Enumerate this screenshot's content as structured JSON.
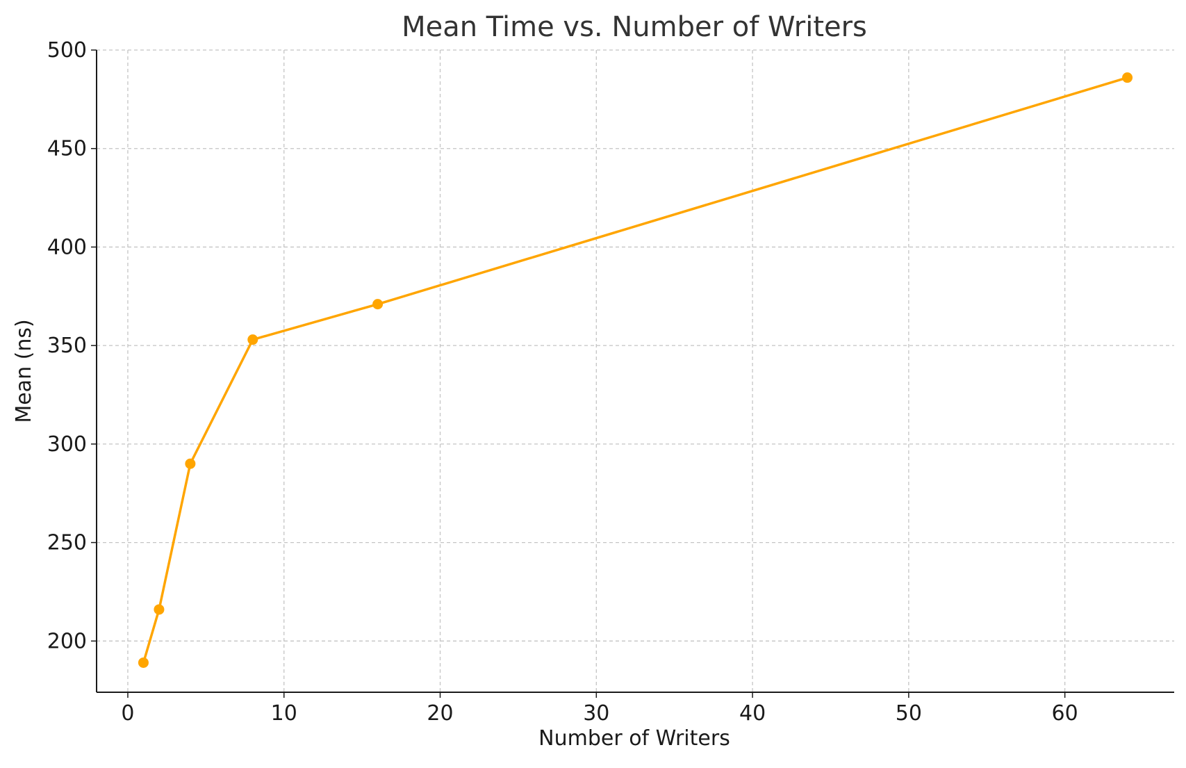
{
  "chart_data": {
    "type": "line",
    "title": "Mean Time vs. Number of Writers",
    "xlabel": "Number of Writers",
    "ylabel": "Mean (ns)",
    "xlim": [
      -2,
      67
    ],
    "ylim": [
      174,
      500
    ],
    "x_ticks": [
      0,
      10,
      20,
      30,
      40,
      50,
      60
    ],
    "y_ticks": [
      200,
      250,
      300,
      350,
      400,
      450,
      500
    ],
    "grid": true,
    "legend": "none",
    "series": [
      {
        "x": [
          1,
          2,
          4,
          8,
          16,
          64
        ],
        "y": [
          189,
          216,
          290,
          353,
          371,
          486
        ],
        "color": "#FFA500",
        "marker": "circle"
      }
    ]
  }
}
